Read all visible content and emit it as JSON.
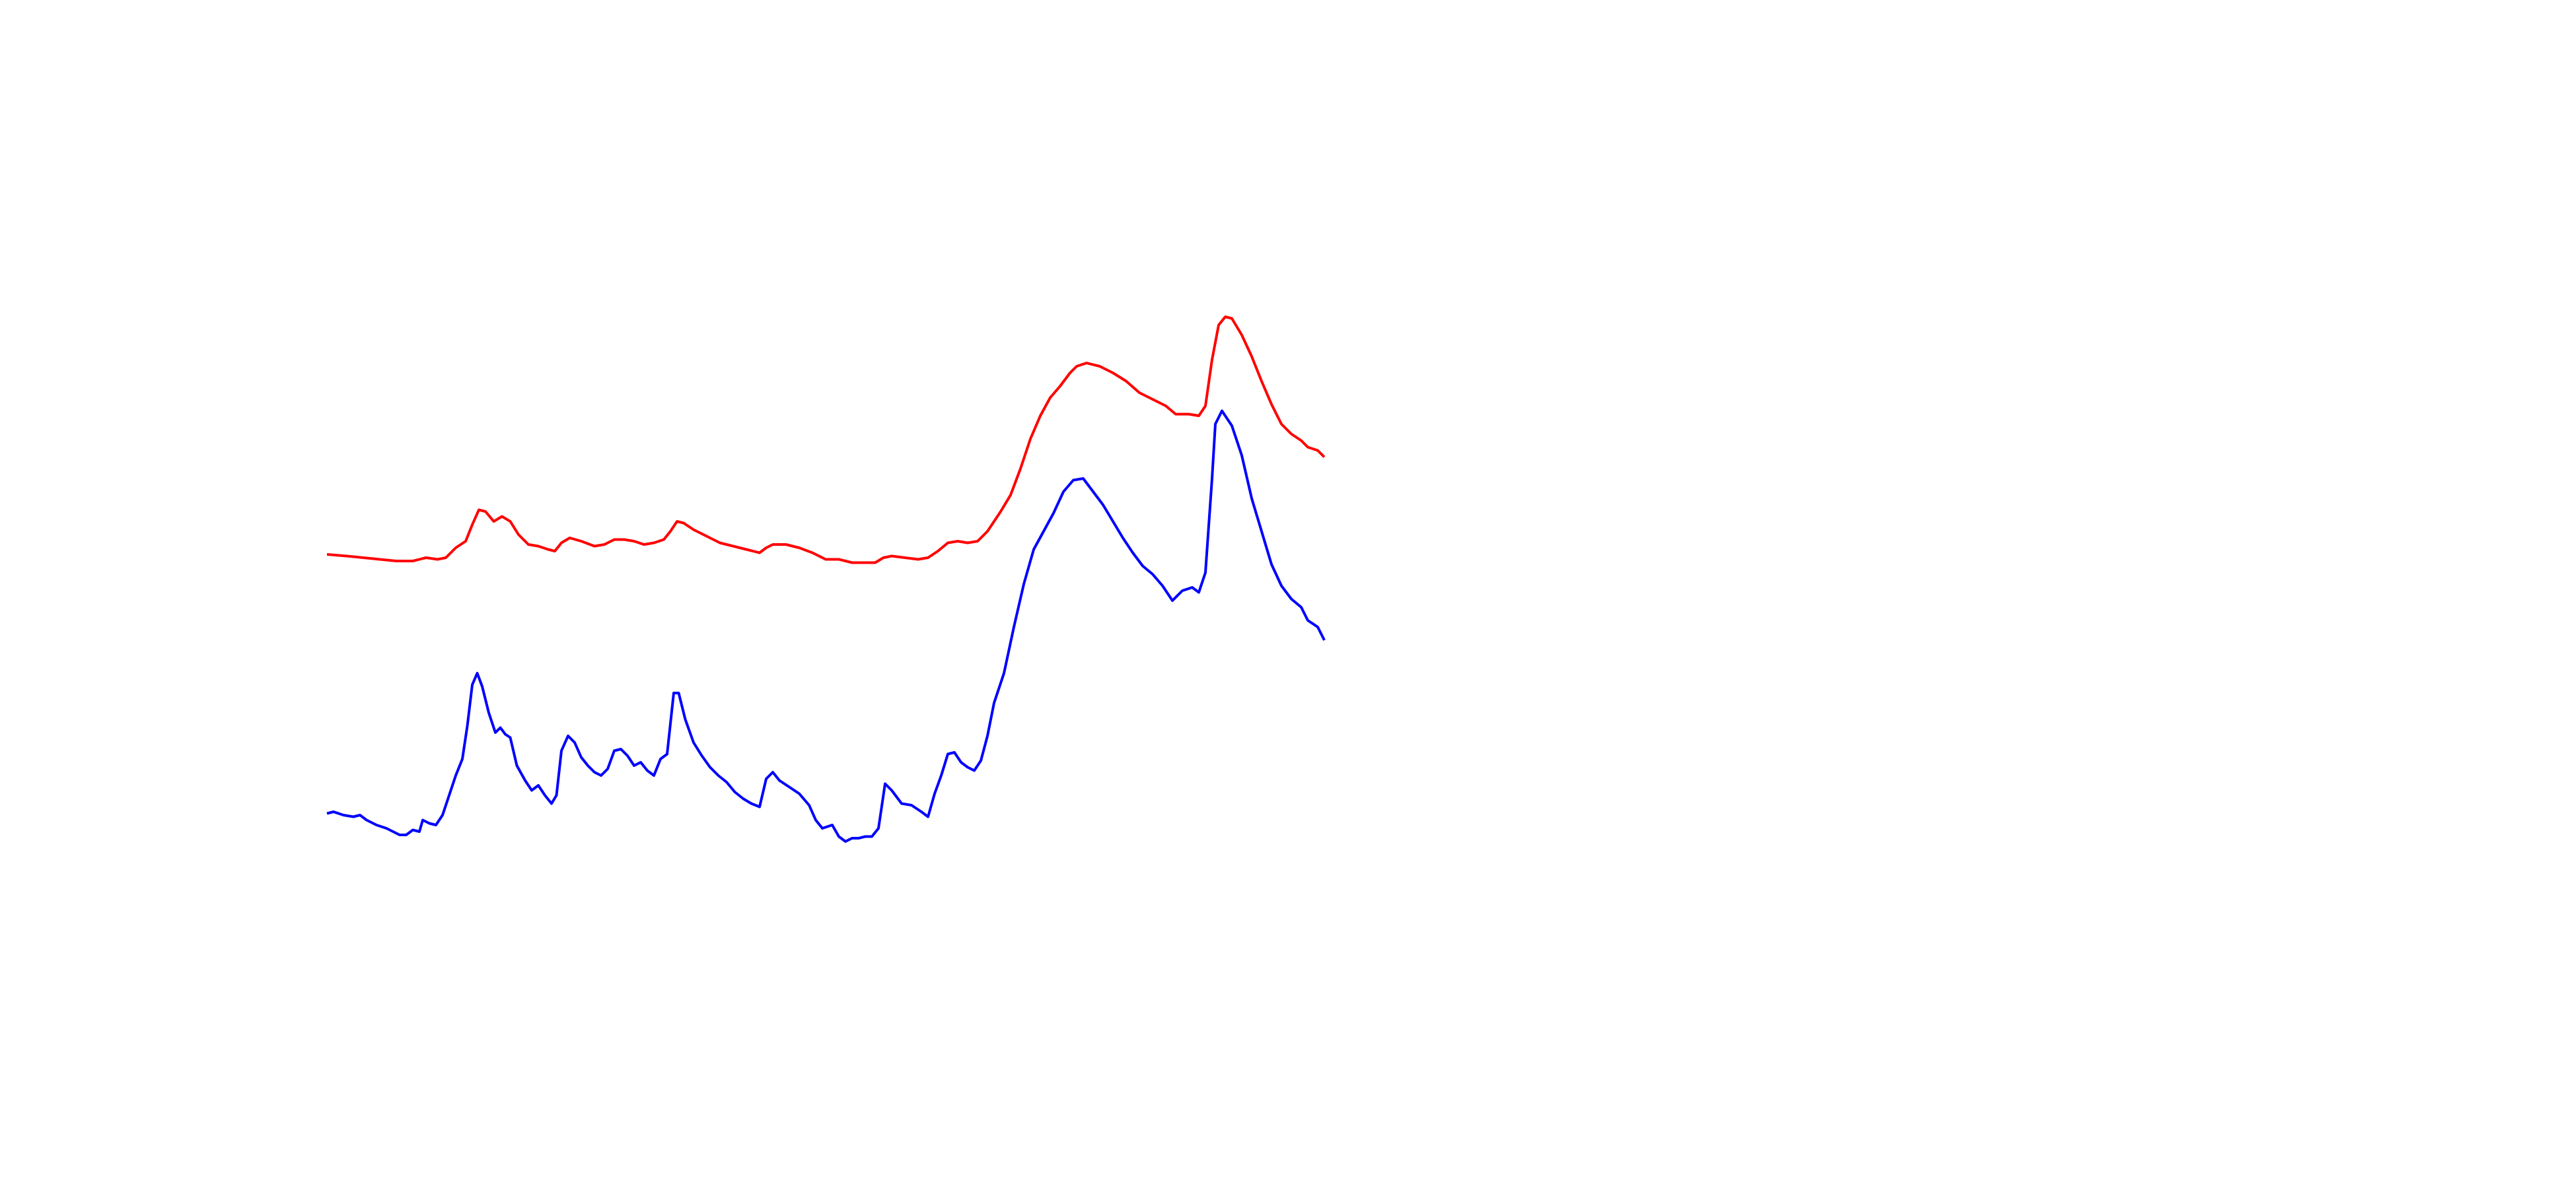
{
  "chart_data": {
    "type": "line",
    "xlim": [
      0,
      1560
    ],
    "ylim": [
      720,
      0
    ],
    "series": [
      {
        "color": "#ff0000",
        "x": [
          198,
          210,
          220,
          230,
          240,
          250,
          258,
          265,
          270,
          276,
          282,
          286,
          290,
          294,
          299,
          304,
          309,
          314,
          320,
          326,
          332,
          336,
          340,
          345,
          352,
          360,
          366,
          372,
          378,
          384,
          390,
          396,
          402,
          406,
          410,
          414,
          420,
          428,
          436,
          444,
          452,
          460,
          464,
          468,
          476,
          484,
          492,
          500,
          508,
          516,
          524,
          530,
          535,
          540,
          548,
          556,
          562,
          568,
          574,
          580,
          586,
          592,
          598,
          606,
          612,
          618,
          624,
          630,
          636,
          642,
          648,
          652,
          658,
          666,
          674,
          682,
          690,
          698,
          706,
          712,
          720,
          726,
          730,
          734,
          738,
          742,
          746,
          752,
          758,
          764,
          770,
          776,
          782,
          788,
          792,
          798,
          802
        ],
        "values": [
          336,
          337,
          338,
          339,
          340,
          340,
          338,
          339,
          338,
          332,
          328,
          318,
          309,
          310,
          316,
          313,
          316,
          324,
          330,
          331,
          333,
          334,
          329,
          326,
          328,
          331,
          330,
          327,
          327,
          328,
          330,
          329,
          327,
          322,
          316,
          317,
          321,
          325,
          329,
          331,
          333,
          335,
          332,
          330,
          330,
          332,
          335,
          339,
          339,
          341,
          341,
          341,
          338,
          337,
          338,
          339,
          338,
          334,
          329,
          328,
          329,
          328,
          322,
          310,
          300,
          284,
          266,
          252,
          241,
          234,
          226,
          222,
          220,
          222,
          226,
          231,
          238,
          242,
          246,
          251,
          251,
          252,
          246,
          218,
          197,
          192,
          193,
          203,
          216,
          231,
          245,
          257,
          263,
          267,
          271,
          273,
          277
        ]
      },
      {
        "color": "#0000ff",
        "x": [
          198,
          202,
          208,
          214,
          218,
          222,
          228,
          234,
          238,
          242,
          246,
          250,
          254,
          256,
          260,
          264,
          268,
          272,
          276,
          280,
          283,
          286,
          289,
          292,
          296,
          300,
          303,
          306,
          309,
          313,
          318,
          322,
          326,
          330,
          334,
          337,
          340,
          344,
          348,
          352,
          356,
          360,
          364,
          368,
          372,
          376,
          380,
          384,
          388,
          392,
          396,
          400,
          404,
          408,
          411,
          415,
          420,
          425,
          430,
          435,
          440,
          445,
          450,
          455,
          460,
          464,
          468,
          472,
          478,
          484,
          490,
          494,
          498,
          504,
          508,
          512,
          516,
          520,
          524,
          528,
          532,
          536,
          540,
          546,
          552,
          558,
          562,
          566,
          570,
          574,
          578,
          582,
          586,
          590,
          594,
          598,
          602,
          608,
          614,
          620,
          626,
          632,
          638,
          644,
          650,
          656,
          662,
          668,
          674,
          680,
          686,
          692,
          698,
          704,
          710,
          716,
          722,
          726,
          730,
          734,
          736,
          740,
          746,
          752,
          758,
          764,
          770,
          776,
          782,
          788,
          792,
          798,
          802
        ],
        "values": [
          493,
          492,
          494,
          495,
          494,
          497,
          500,
          502,
          504,
          506,
          506,
          503,
          504,
          497,
          499,
          500,
          494,
          482,
          470,
          460,
          440,
          415,
          408,
          416,
          432,
          444,
          441,
          445,
          447,
          464,
          473,
          479,
          476,
          482,
          487,
          482,
          455,
          446,
          450,
          459,
          464,
          468,
          470,
          466,
          455,
          454,
          458,
          464,
          462,
          467,
          470,
          460,
          457,
          420,
          420,
          436,
          450,
          458,
          465,
          470,
          474,
          480,
          484,
          487,
          489,
          472,
          468,
          473,
          477,
          481,
          488,
          497,
          502,
          500,
          507,
          510,
          508,
          508,
          507,
          507,
          502,
          475,
          479,
          487,
          488,
          492,
          495,
          481,
          470,
          457,
          456,
          462,
          465,
          467,
          461,
          446,
          426,
          408,
          380,
          354,
          333,
          322,
          311,
          298,
          291,
          290,
          298,
          306,
          316,
          326,
          335,
          343,
          348,
          355,
          364,
          358,
          356,
          359,
          347,
          290,
          257,
          249,
          258,
          276,
          302,
          322,
          342,
          355,
          363,
          368,
          376,
          380,
          388
        ]
      }
    ]
  }
}
